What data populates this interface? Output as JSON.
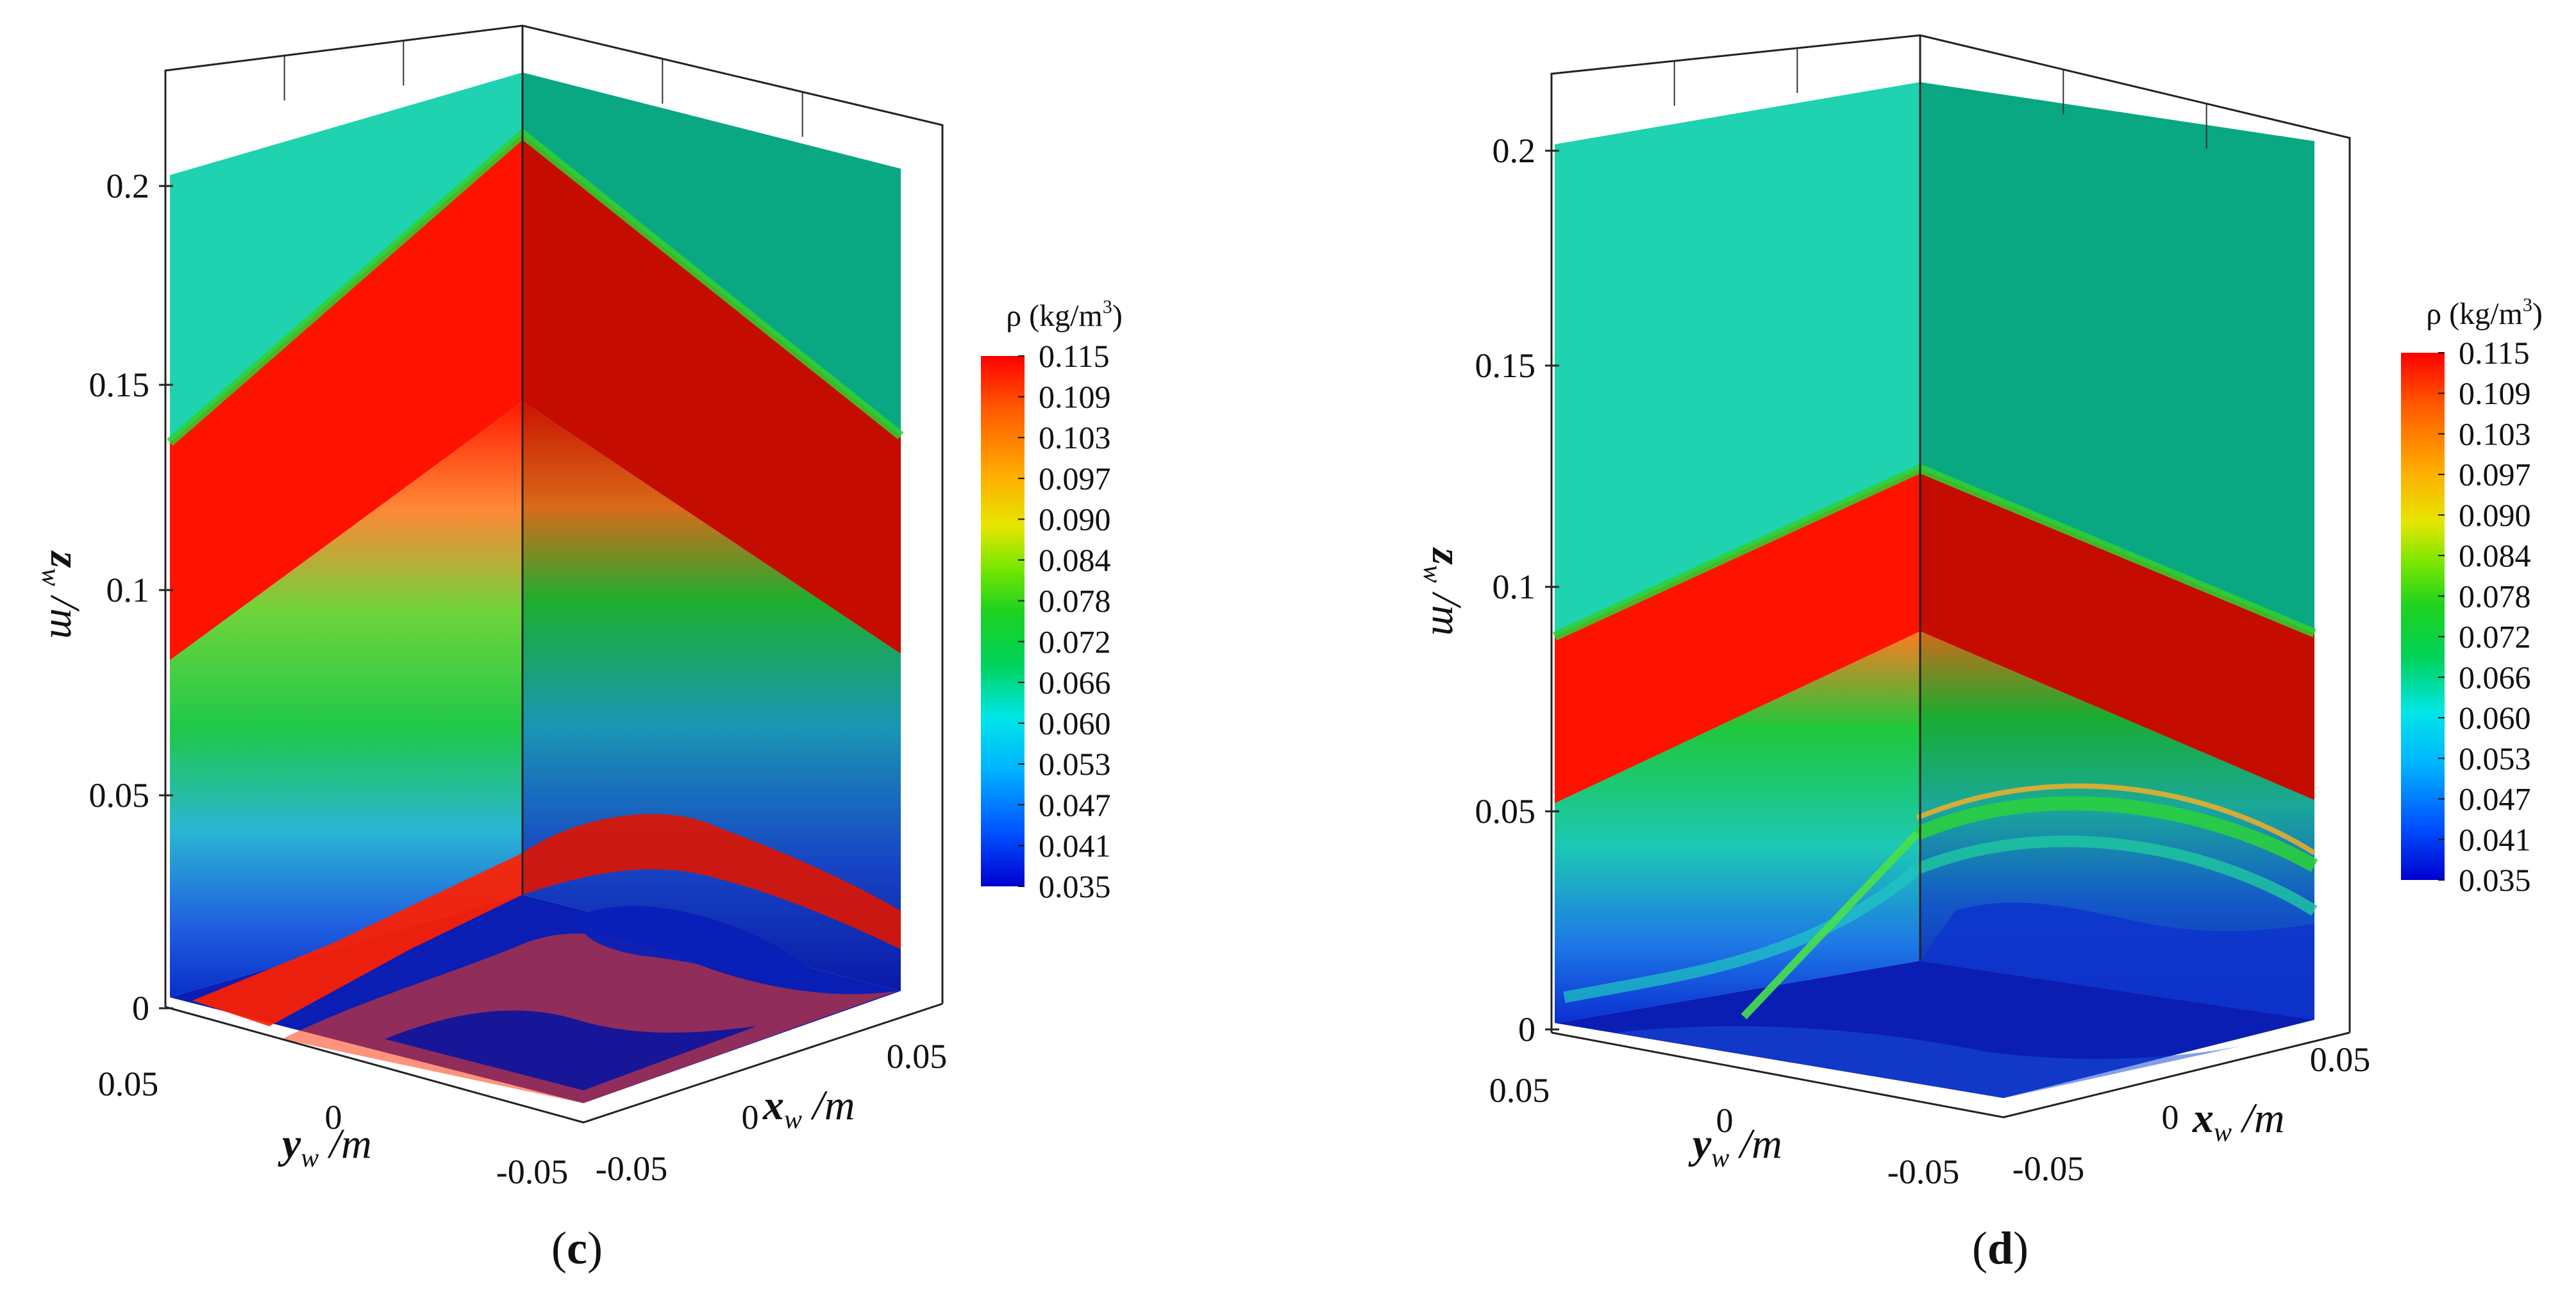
{
  "chart_data": [
    {
      "type": "heatmap",
      "panel_label": "(c)",
      "title": "",
      "xlabel": "x_w /m",
      "ylabel": "y_w /m",
      "zlabel": "z_w /m",
      "x_ticks": [
        "-0.05",
        "0",
        "0.05"
      ],
      "y_ticks": [
        "0.05",
        "0",
        "-0.05"
      ],
      "z_ticks": [
        "0",
        "0.05",
        "0.1",
        "0.15",
        "0.2"
      ],
      "xlim": [
        -0.06,
        0.06
      ],
      "ylim": [
        -0.06,
        0.06
      ],
      "zlim": [
        0,
        0.2
      ],
      "field": "density",
      "pre_shock_density": 0.066,
      "post_shock_density": 0.115,
      "shock_front_height_edge": 0.135,
      "shock_front_height_corner": 0.185,
      "colorbar": {
        "title": "ρ (kg/m³)",
        "title_base": "ρ (kg/m",
        "title_exp": "3",
        "title_close": ")",
        "ticks": [
          "0.115",
          "0.109",
          "0.103",
          "0.097",
          "0.090",
          "0.084",
          "0.078",
          "0.072",
          "0.066",
          "0.060",
          "0.053",
          "0.047",
          "0.041",
          "0.035"
        ],
        "range": [
          0.035,
          0.115
        ],
        "colormap": [
          "#0000d0",
          "#0050ff",
          "#00b4ff",
          "#00e6e6",
          "#00d25a",
          "#1ed21e",
          "#78e600",
          "#e6e600",
          "#ffaa00",
          "#ff5a00",
          "#ff0000"
        ]
      }
    },
    {
      "type": "heatmap",
      "panel_label": "(d)",
      "title": "",
      "xlabel": "x_w /m",
      "ylabel": "y_w /m",
      "zlabel": "z_w /m",
      "x_ticks": [
        "-0.05",
        "0",
        "0.05"
      ],
      "y_ticks": [
        "0.05",
        "0",
        "-0.05"
      ],
      "z_ticks": [
        "0",
        "0.05",
        "0.1",
        "0.15",
        "0.2"
      ],
      "xlim": [
        -0.06,
        0.06
      ],
      "ylim": [
        -0.06,
        0.06
      ],
      "zlim": [
        0,
        0.2
      ],
      "field": "density",
      "pre_shock_density": 0.066,
      "post_shock_density": 0.115,
      "shock_front_height_edge": 0.088,
      "shock_front_height_corner": 0.112,
      "colorbar": {
        "title": "ρ (kg/m³)",
        "title_base": "ρ (kg/m",
        "title_exp": "3",
        "title_close": ")",
        "ticks": [
          "0.115",
          "0.109",
          "0.103",
          "0.097",
          "0.090",
          "0.084",
          "0.078",
          "0.072",
          "0.066",
          "0.060",
          "0.053",
          "0.047",
          "0.041",
          "0.035"
        ],
        "range": [
          0.035,
          0.115
        ],
        "colormap": [
          "#0000d0",
          "#0050ff",
          "#00b4ff",
          "#00e6e6",
          "#00d25a",
          "#1ed21e",
          "#78e600",
          "#e6e600",
          "#ffaa00",
          "#ff5a00",
          "#ff0000"
        ]
      }
    }
  ]
}
